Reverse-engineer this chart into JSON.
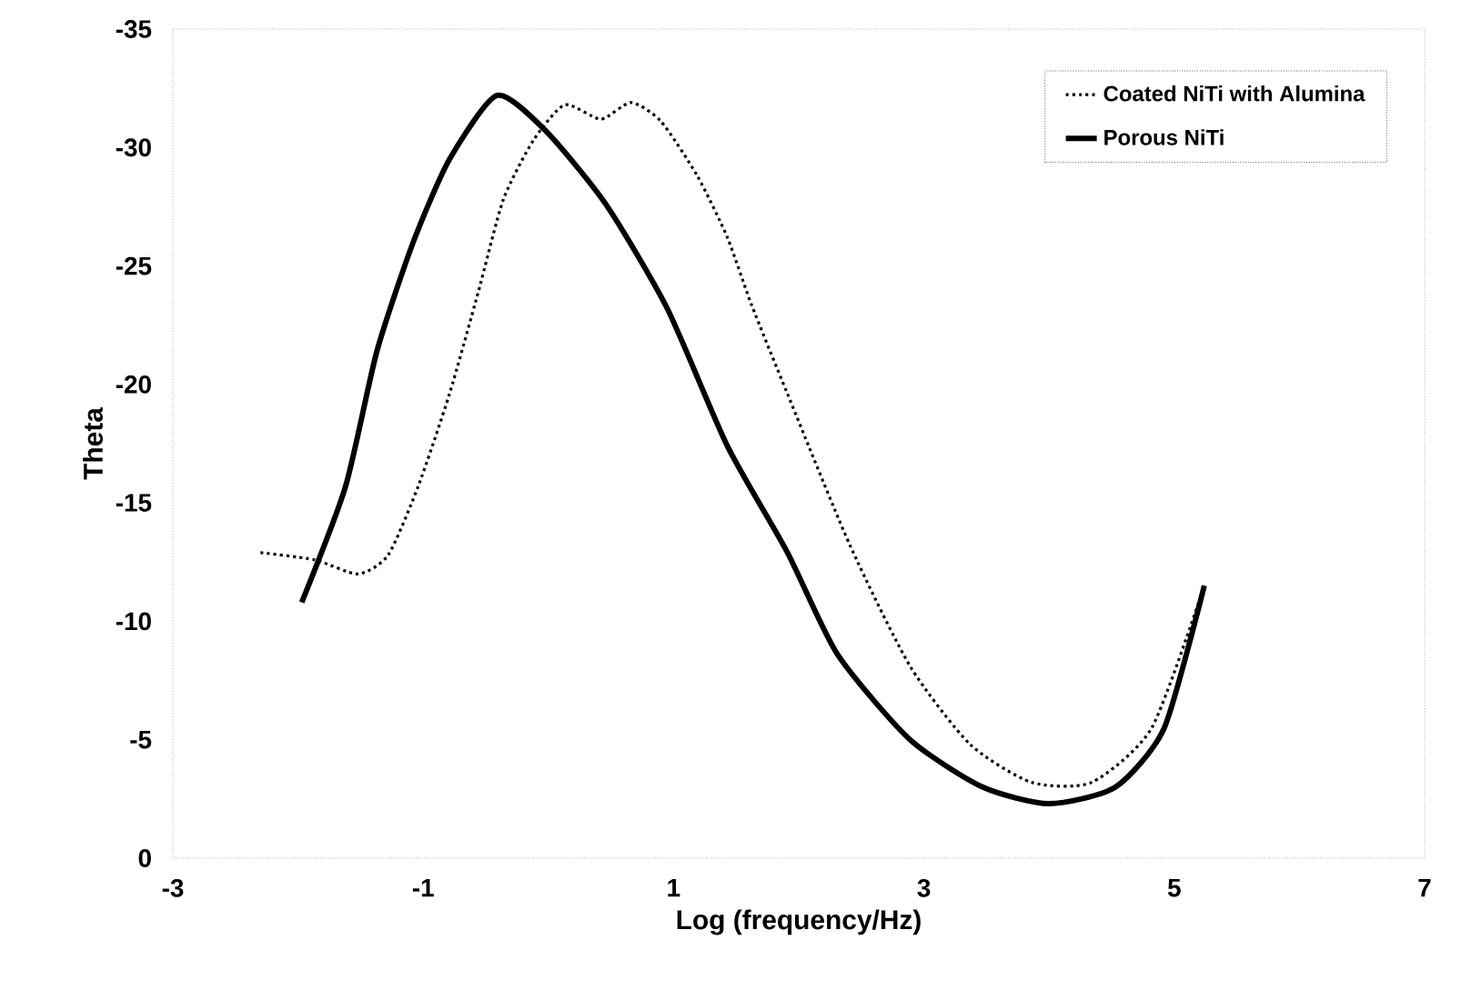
{
  "chart_data": {
    "type": "line",
    "xlabel": "Log (frequency/Hz)",
    "ylabel": "Theta",
    "xlim": [
      -3,
      7
    ],
    "xticks": [
      -3,
      -1,
      1,
      3,
      5,
      7
    ],
    "ylim": [
      0,
      -35
    ],
    "yticks": [
      0,
      -5,
      -10,
      -15,
      -20,
      -25,
      -30,
      -35
    ],
    "grid": false,
    "legend": "top right",
    "marker": "none",
    "series": [
      {
        "name": "Coated NiTi with Alumina",
        "color": "#000000",
        "line_style": "dotted",
        "x": [
          -2.3,
          -1.87,
          -1.52,
          -1.28,
          -1.04,
          -0.79,
          -0.56,
          -0.36,
          -0.12,
          0.13,
          0.42,
          0.66,
          0.9,
          1.19,
          1.43,
          1.62,
          1.91,
          2.41,
          2.89,
          3.37,
          3.86,
          4.34,
          4.82,
          5.24
        ],
        "values": [
          -12.9,
          -12.6,
          -12.0,
          -12.8,
          -15.7,
          -19.6,
          -23.9,
          -27.8,
          -30.3,
          -31.8,
          -31.2,
          -31.9,
          -31.1,
          -28.8,
          -26.2,
          -23.4,
          -19.6,
          -13.2,
          -8.1,
          -4.8,
          -3.2,
          -3.2,
          -5.5,
          -11.5
        ]
      },
      {
        "name": "Porous NiTi",
        "color": "#000000",
        "line_style": "solid",
        "x": [
          -1.97,
          -1.62,
          -1.37,
          -1.08,
          -0.79,
          -0.41,
          -0.02,
          0.46,
          0.95,
          1.43,
          1.91,
          2.31,
          2.89,
          3.47,
          4.0,
          4.53,
          4.92,
          5.24
        ],
        "values": [
          -10.8,
          -15.7,
          -21.4,
          -26.0,
          -29.5,
          -32.2,
          -30.7,
          -27.6,
          -23.2,
          -17.4,
          -12.9,
          -8.6,
          -5.0,
          -3.0,
          -2.3,
          -3.0,
          -5.5,
          -11.5
        ]
      }
    ]
  }
}
